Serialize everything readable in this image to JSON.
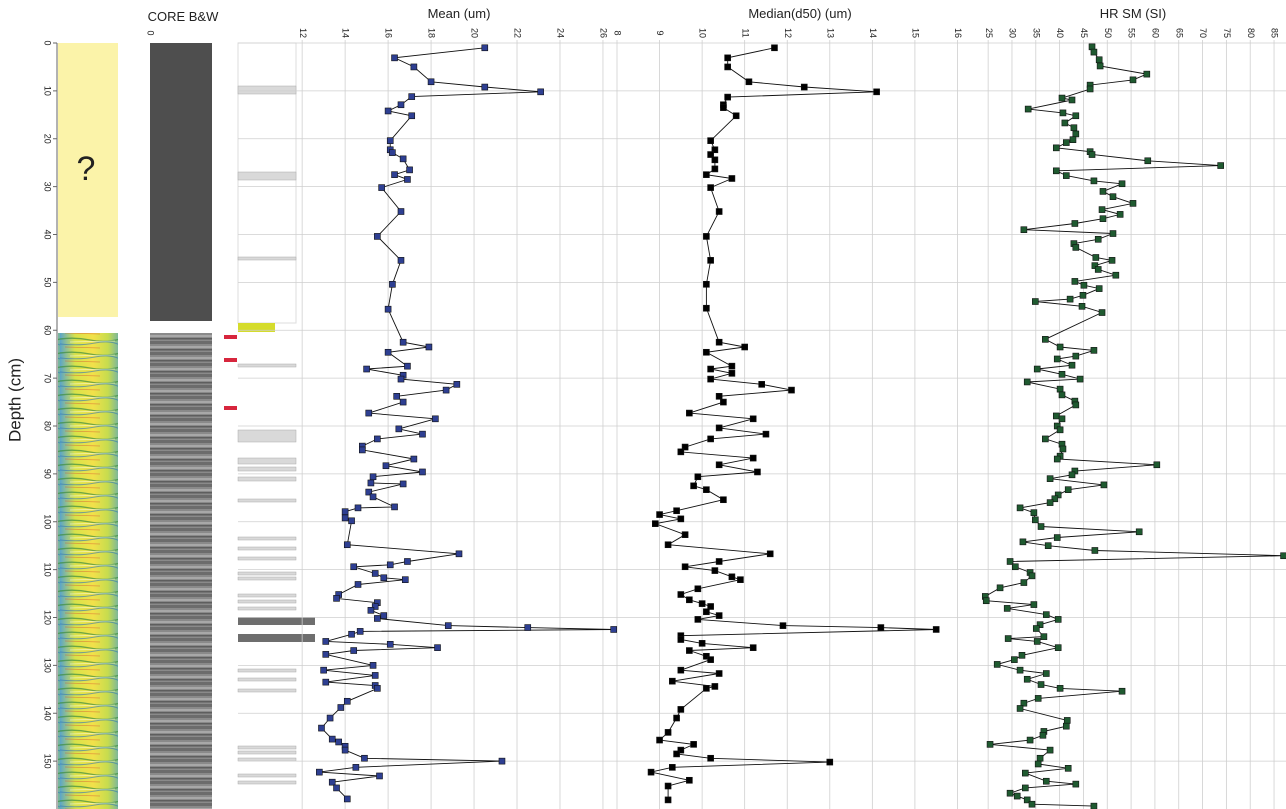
{
  "core_log": {
    "core_title": "CORE B&W",
    "core_scale_tick": 0,
    "unknown_label": "?"
  },
  "chart_data": [
    {
      "type": "line",
      "title": "Mean (um)",
      "ylabel": "Depth (cm)",
      "ylim": [
        0,
        160
      ],
      "yticks": [
        0,
        10,
        20,
        30,
        40,
        50,
        60,
        70,
        80,
        90,
        100,
        110,
        120,
        130,
        140,
        150
      ],
      "xlim": [
        11.9,
        26.7
      ],
      "xticks": [
        12,
        14,
        16,
        18,
        20,
        22,
        24,
        26
      ],
      "color": "#2e3f92",
      "grid": true,
      "y": [
        1.0,
        3.1,
        5.0,
        8.1,
        9.2,
        10.2,
        11.2,
        12.9,
        14.2,
        15.2,
        20.4,
        22.3,
        22.9,
        24.2,
        26.5,
        27.5,
        28.5,
        30.2,
        35.2,
        40.4,
        45.4,
        50.4,
        55.6,
        62.5,
        63.5,
        64.6,
        67.5,
        68.1,
        69.4,
        70.2,
        71.3,
        72.5,
        73.8,
        75.0,
        77.3,
        78.5,
        80.6,
        81.7,
        82.7,
        84.2,
        85.0,
        86.9,
        88.3,
        89.6,
        90.6,
        91.9,
        92.1,
        93.8,
        94.8,
        96.9,
        97.1,
        97.9,
        99.2,
        99.8,
        104.8,
        106.7,
        108.3,
        109.0,
        109.4,
        110.8,
        111.7,
        112.1,
        113.1,
        115.2,
        116.0,
        116.9,
        117.7,
        118.5,
        119.6,
        120.2,
        121.7,
        122.1,
        122.5,
        122.9,
        123.5,
        125.0,
        125.6,
        126.3,
        126.9,
        127.7,
        130.0,
        131.0,
        132.1,
        133.5,
        134.2,
        134.8,
        137.5,
        138.8,
        141.0,
        143.1,
        145.4,
        146.0,
        146.9,
        147.7,
        149.4,
        150.0,
        151.3,
        152.3,
        153.1,
        154.4,
        155.6,
        157.9
      ],
      "values": [
        20.5,
        16.3,
        17.2,
        18.0,
        20.5,
        23.1,
        17.1,
        16.6,
        16.0,
        17.1,
        16.1,
        16.1,
        16.2,
        16.7,
        17.0,
        16.3,
        16.9,
        15.7,
        16.6,
        15.5,
        16.6,
        16.2,
        16.0,
        16.7,
        17.9,
        16.0,
        16.9,
        15.0,
        16.7,
        16.6,
        19.2,
        18.7,
        16.4,
        16.7,
        15.1,
        18.2,
        16.5,
        17.6,
        15.5,
        14.8,
        14.8,
        17.2,
        15.9,
        17.6,
        15.3,
        15.2,
        16.7,
        15.1,
        15.3,
        16.3,
        14.6,
        14.0,
        14.0,
        14.3,
        14.1,
        19.3,
        16.9,
        16.1,
        14.4,
        15.4,
        15.8,
        16.8,
        14.6,
        13.7,
        13.6,
        15.5,
        15.4,
        15.2,
        15.8,
        15.5,
        18.8,
        22.5,
        26.5,
        14.7,
        14.3,
        13.1,
        16.1,
        18.3,
        14.4,
        13.1,
        15.3,
        13.0,
        15.4,
        13.1,
        15.4,
        15.5,
        14.1,
        13.8,
        13.3,
        12.9,
        13.4,
        13.7,
        14.0,
        14.0,
        14.9,
        21.3,
        14.5,
        12.8,
        15.6,
        13.4,
        13.6,
        14.1
      ]
    },
    {
      "type": "line",
      "title": "Median(d50) (um)",
      "xlim": [
        8,
        16.6
      ],
      "xticks": [
        8,
        9,
        10,
        11,
        12,
        13,
        14,
        15,
        16
      ],
      "color": "#000000",
      "grid": true,
      "y": [
        1.0,
        3.1,
        5.0,
        8.1,
        9.2,
        10.2,
        11.3,
        12.9,
        13.5,
        15.2,
        20.4,
        22.3,
        23.3,
        24.4,
        26.3,
        27.5,
        28.3,
        30.2,
        35.2,
        40.4,
        45.4,
        50.4,
        55.4,
        62.5,
        63.5,
        64.6,
        67.5,
        68.1,
        69.0,
        70.2,
        71.3,
        72.5,
        73.8,
        75.0,
        77.3,
        78.5,
        80.4,
        81.7,
        82.7,
        84.4,
        85.4,
        86.7,
        88.1,
        89.6,
        90.6,
        92.5,
        93.3,
        95.4,
        97.7,
        98.5,
        99.4,
        100.4,
        102.7,
        104.8,
        106.7,
        108.3,
        109.4,
        110.2,
        111.5,
        112.1,
        114.0,
        115.2,
        116.3,
        117.1,
        117.7,
        118.8,
        119.6,
        120.4,
        121.7,
        122.1,
        122.5,
        123.8,
        124.6,
        125.4,
        126.3,
        126.9,
        128.1,
        128.8,
        131.0,
        131.7,
        133.3,
        134.4,
        134.8,
        139.2,
        141.0,
        144.0,
        145.6,
        146.5,
        147.7,
        148.5,
        149.4,
        150.2,
        151.3,
        152.3,
        154.0,
        155.2,
        158.1
      ],
      "values": [
        11.7,
        10.6,
        10.6,
        11.1,
        12.4,
        14.1,
        10.6,
        10.5,
        10.5,
        10.8,
        10.2,
        10.3,
        10.2,
        10.3,
        10.3,
        10.1,
        10.7,
        10.2,
        10.4,
        10.1,
        10.2,
        10.1,
        10.1,
        10.4,
        11.0,
        10.1,
        10.7,
        10.2,
        10.7,
        10.2,
        11.4,
        12.1,
        10.4,
        10.5,
        9.7,
        11.2,
        10.4,
        11.5,
        10.2,
        9.6,
        9.5,
        11.2,
        10.4,
        11.3,
        9.9,
        9.8,
        10.1,
        10.5,
        9.4,
        9.0,
        9.5,
        8.9,
        9.6,
        9.2,
        11.6,
        10.4,
        9.6,
        10.3,
        10.7,
        10.9,
        9.9,
        9.5,
        9.7,
        10.0,
        10.2,
        10.1,
        10.4,
        9.9,
        11.9,
        14.2,
        15.5,
        9.5,
        9.5,
        10.0,
        11.2,
        9.7,
        10.1,
        10.2,
        9.5,
        10.4,
        9.3,
        10.3,
        10.1,
        9.5,
        9.4,
        9.2,
        9.0,
        9.8,
        9.5,
        9.4,
        10.2,
        13.0,
        9.3,
        8.8,
        9.7,
        9.2,
        9.2
      ]
    },
    {
      "type": "line",
      "title": "HR SM (SI)",
      "xlim": [
        23.5,
        87.3
      ],
      "xticks": [
        25,
        30,
        35,
        40,
        45,
        50,
        55,
        60,
        65,
        70,
        75,
        80,
        85
      ],
      "color": "#1f5a30",
      "grid": true,
      "y": [
        0.8,
        1.9,
        3.5,
        4.8,
        6.5,
        7.7,
        8.8,
        9.6,
        11.5,
        11.9,
        13.8,
        14.6,
        15.2,
        16.7,
        17.7,
        19.0,
        20.2,
        20.8,
        21.9,
        22.7,
        23.3,
        24.6,
        25.6,
        26.7,
        27.7,
        28.8,
        29.4,
        31.0,
        32.1,
        33.5,
        34.8,
        35.8,
        36.7,
        37.7,
        39.0,
        39.8,
        41.0,
        41.9,
        42.7,
        44.8,
        45.4,
        46.5,
        47.3,
        48.5,
        49.8,
        50.6,
        51.3,
        52.7,
        53.5,
        54.0,
        55.0,
        56.3,
        61.9,
        63.5,
        64.2,
        65.4,
        66.0,
        67.3,
        68.1,
        69.2,
        70.2,
        70.8,
        72.3,
        73.5,
        74.8,
        75.6,
        77.9,
        78.5,
        80.0,
        80.8,
        82.7,
        83.8,
        84.8,
        86.3,
        86.9,
        88.1,
        89.4,
        90.2,
        91.0,
        92.3,
        93.3,
        94.4,
        95.2,
        96.0,
        97.1,
        98.1,
        99.6,
        101.0,
        102.1,
        103.3,
        104.2,
        105.0,
        106.0,
        107.1,
        108.3,
        109.4,
        110.6,
        111.3,
        112.7,
        113.8,
        115.6,
        116.5,
        117.3,
        118.1,
        119.4,
        120.4,
        121.5,
        122.3,
        124.0,
        124.4,
        125.0,
        126.3,
        127.9,
        128.8,
        129.8,
        131.0,
        131.7,
        132.9,
        134.0,
        134.8,
        135.4,
        136.9,
        137.9,
        139.0,
        141.5,
        142.7,
        143.8,
        144.6,
        145.6,
        146.5,
        147.7,
        149.4,
        150.6,
        151.5,
        152.5,
        154.2,
        154.8,
        155.6,
        156.7,
        157.3,
        158.1,
        159.0,
        159.4
      ],
      "values": [
        46.8,
        47.2,
        48.3,
        48.5,
        58.3,
        55.4,
        46.4,
        46.4,
        40.5,
        42.6,
        33.4,
        40.7,
        43.4,
        41.1,
        43.0,
        43.4,
        42.8,
        41.4,
        39.3,
        46.4,
        46.8,
        58.5,
        73.8,
        39.3,
        41.4,
        47.2,
        53.1,
        49.1,
        51.2,
        55.4,
        48.9,
        52.7,
        49.1,
        43.2,
        32.5,
        51.2,
        48.1,
        43.0,
        43.4,
        47.6,
        51.0,
        47.4,
        48.1,
        51.8,
        43.2,
        45.1,
        48.3,
        44.9,
        42.2,
        34.9,
        44.7,
        48.9,
        37.0,
        40.1,
        47.2,
        43.4,
        39.5,
        42.6,
        35.3,
        40.5,
        44.3,
        33.2,
        40.1,
        40.5,
        43.2,
        43.4,
        39.3,
        40.5,
        39.5,
        40.1,
        37.0,
        40.5,
        40.7,
        40.1,
        39.5,
        60.4,
        43.2,
        42.6,
        38.0,
        49.3,
        41.8,
        39.7,
        39.0,
        38.0,
        31.7,
        34.6,
        34.9,
        36.1,
        56.7,
        39.5,
        32.3,
        37.6,
        47.4,
        87.0,
        29.6,
        30.7,
        33.8,
        34.2,
        32.5,
        27.5,
        24.4,
        24.6,
        34.6,
        29.0,
        37.2,
        39.7,
        35.9,
        35.1,
        36.7,
        29.2,
        35.3,
        39.7,
        32.1,
        30.5,
        26.9,
        31.7,
        37.2,
        33.2,
        36.1,
        40.1,
        53.1,
        35.5,
        32.5,
        31.7,
        41.6,
        41.4,
        36.7,
        36.5,
        33.8,
        25.4,
        38.0,
        35.9,
        35.5,
        41.8,
        32.8,
        37.2,
        43.4,
        32.8,
        29.6,
        31.1,
        33.2,
        34.2,
        47.2
      ]
    }
  ]
}
